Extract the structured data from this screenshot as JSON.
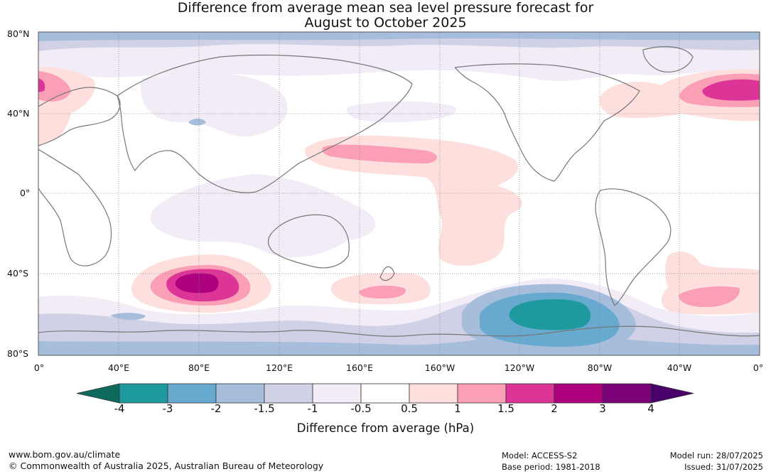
{
  "title": {
    "line1": "Difference from average mean sea level pressure forecast for",
    "line2": "August to October 2025"
  },
  "axes": {
    "lat_labels": [
      "80°N",
      "40°N",
      "0°",
      "40°S",
      "80°S"
    ],
    "lon_labels": [
      "0°",
      "40°E",
      "80°E",
      "120°E",
      "160°E",
      "160°W",
      "120°W",
      "80°W",
      "40°W",
      "0°"
    ]
  },
  "colorbar": {
    "label": "Difference from average (hPa)",
    "ticks": [
      "-4",
      "-3",
      "-2",
      "-1.5",
      "-1",
      "-0.5",
      "0.5",
      "1",
      "1.5",
      "2",
      "3",
      "4"
    ],
    "colors": [
      "#0d6b5e",
      "#1e9a9e",
      "#67a9cf",
      "#a6bddb",
      "#d0d1e6",
      "#f1ecf6",
      "#ffffff",
      "#fde0dd",
      "#fa9fb5",
      "#dd3497",
      "#ae017e",
      "#7a0177",
      "#49006a"
    ]
  },
  "footer": {
    "url": "www.bom.gov.au/climate",
    "copyright": "© Commonwealth of Australia 2025, Australian Bureau of Meteorology",
    "model": "Model: ACCESS-S2",
    "base_period": "Base period: 1981-2018",
    "model_run": "Model run: 28/07/2025",
    "issued": "Issued: 31/07/2025"
  }
}
